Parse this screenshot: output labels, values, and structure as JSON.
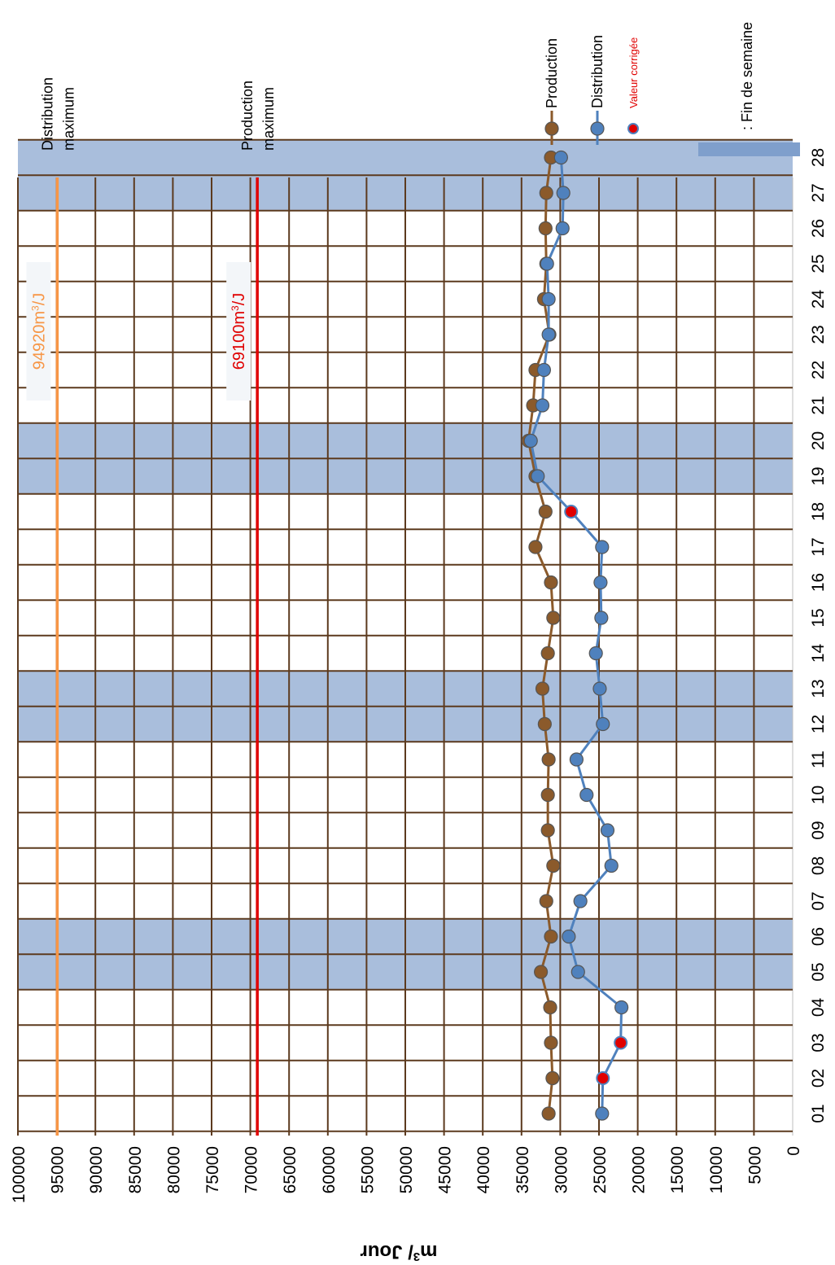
{
  "chart_data": {
    "type": "line",
    "orientation": "rotated-90-clockwise",
    "ylabel_main": "m",
    "ylabel_sup": "3",
    "ylabel_rest": "/ Jour",
    "yticks": [
      0,
      5000,
      10000,
      15000,
      20000,
      25000,
      30000,
      35000,
      40000,
      45000,
      50000,
      55000,
      60000,
      65000,
      70000,
      75000,
      80000,
      85000,
      90000,
      95000,
      100000
    ],
    "ylim": [
      0,
      100000
    ],
    "categories": [
      "01",
      "02",
      "03",
      "04",
      "05",
      "06",
      "07",
      "08",
      "09",
      "10",
      "11",
      "12",
      "13",
      "14",
      "15",
      "16",
      "17",
      "18",
      "19",
      "20",
      "21",
      "22",
      "23",
      "24",
      "25",
      "26",
      "27",
      "28"
    ],
    "weekend_bands": [
      "05",
      "06",
      "12",
      "13",
      "19",
      "20",
      "27",
      "28"
    ],
    "series": [
      {
        "name": "Production",
        "color": "#8B5A2B",
        "values": [
          31500,
          31000,
          31200,
          31300,
          32500,
          31200,
          31800,
          30900,
          31600,
          31600,
          31500,
          32000,
          32300,
          31600,
          30900,
          31200,
          33200,
          31900,
          33200,
          34100,
          33500,
          33200,
          31400,
          32100,
          31800,
          31900,
          31800,
          31200
        ]
      },
      {
        "name": "Distribution",
        "color": "#4F81BD",
        "values": [
          24600,
          24500,
          22200,
          22100,
          27700,
          28900,
          27400,
          23400,
          23900,
          26600,
          27900,
          24500,
          24900,
          25400,
          24700,
          24800,
          24600,
          28600,
          32900,
          33800,
          32300,
          32100,
          31500,
          31500,
          31700,
          29700,
          29600,
          29900
        ]
      }
    ],
    "corrected_points": [
      {
        "series": "Distribution",
        "category": "02",
        "value": 24500
      },
      {
        "series": "Distribution",
        "category": "03",
        "value": 22200
      },
      {
        "series": "Distribution",
        "category": "18",
        "value": 28600
      }
    ],
    "reference_lines": [
      {
        "name": "Distribution maximum",
        "value": 94920,
        "label_value": "94920",
        "label_unit": "m",
        "label_sup": "3",
        "label_tail": "/J",
        "color": "#F79646",
        "title_line1": "Distribution",
        "title_line2": "maximum"
      },
      {
        "name": "Production maximum",
        "value": 69100,
        "label_value": "69100",
        "label_unit": "m",
        "label_sup": "3",
        "label_tail": "/J",
        "color": "#E00000",
        "title_line1": "Production",
        "title_line2": "maximum"
      }
    ],
    "legend": {
      "placement": "top-right",
      "items": [
        {
          "label": "Production",
          "color": "#8B5A2B",
          "kind": "line-marker"
        },
        {
          "label": "Distribution",
          "color": "#4F81BD",
          "kind": "line-marker"
        },
        {
          "label": "Valeur corrigée",
          "color": "#E00000",
          "kind": "marker-red"
        },
        {
          "label": ": Fin de semaine",
          "color": "#7F9FCC",
          "kind": "band"
        }
      ]
    },
    "grid": true,
    "grid_color": "#5C3A1E",
    "band_color": "#A9BEDC"
  }
}
